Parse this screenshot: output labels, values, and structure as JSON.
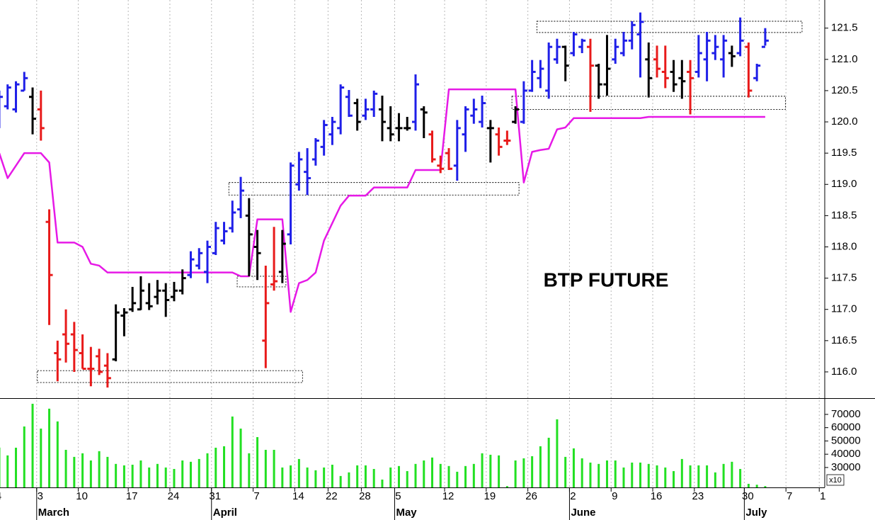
{
  "chart_data": {
    "type": "ohlc",
    "title": "BTP FUTURE",
    "categories": [
      "4",
      null,
      null,
      null,
      null,
      "3",
      null,
      null,
      null,
      null,
      "10",
      null,
      null,
      null,
      null,
      null,
      "17",
      null,
      null,
      null,
      null,
      "24",
      null,
      null,
      null,
      null,
      "31",
      null,
      null,
      null,
      null,
      "7",
      null,
      null,
      null,
      null,
      "14",
      null,
      null,
      null,
      "22",
      null,
      null,
      null,
      "28",
      null,
      null,
      null,
      "5",
      null,
      null,
      null,
      null,
      null,
      "12",
      null,
      null,
      null,
      null,
      "19",
      null,
      null,
      null,
      null,
      "26",
      null,
      null,
      null,
      null,
      "2",
      null,
      null,
      null,
      null,
      "9",
      null,
      null,
      null,
      null,
      "16",
      null,
      null,
      null,
      null,
      "23",
      null,
      null,
      null,
      null,
      null,
      "30",
      null,
      null,
      null,
      null,
      "7",
      null,
      null,
      null,
      "1"
    ],
    "x_months": [
      null,
      null,
      null,
      null,
      null,
      "March",
      null,
      null,
      null,
      null,
      null,
      null,
      null,
      null,
      null,
      null,
      null,
      null,
      null,
      null,
      null,
      null,
      null,
      null,
      null,
      null,
      "April",
      null,
      null,
      null,
      null,
      null,
      null,
      null,
      null,
      null,
      null,
      null,
      null,
      null,
      null,
      null,
      null,
      null,
      null,
      null,
      null,
      null,
      "May",
      null,
      null,
      null,
      null,
      null,
      null,
      null,
      null,
      null,
      null,
      null,
      null,
      null,
      null,
      null,
      null,
      null,
      null,
      null,
      null,
      "June",
      null,
      null,
      null,
      null,
      null,
      null,
      null,
      null,
      null,
      null,
      null,
      null,
      null,
      null,
      null,
      null,
      null,
      null,
      null,
      null,
      "July",
      null,
      null,
      null,
      null,
      null,
      null,
      null,
      null,
      null
    ],
    "open": [
      119.95,
      120.25,
      120.2,
      120.5,
      120.4,
      120.2,
      118.4,
      116.3,
      116.6,
      116.6,
      116.3,
      116.05,
      116.25,
      116.1,
      116.2,
      116.9,
      117.0,
      117.0,
      117.1,
      117.2,
      117.3,
      117.2,
      117.3,
      117.55,
      117.7,
      117.6,
      117.9,
      118.1,
      118.3,
      118.6,
      118.5,
      118.0,
      116.5,
      117.4,
      117.6,
      118.2,
      119.0,
      119.2,
      119.4,
      119.6,
      119.8,
      119.9,
      120.4,
      120.3,
      120.1,
      120.2,
      120.2,
      119.9,
      119.9,
      119.9,
      120.0,
      120.2,
      119.8,
      119.3,
      119.5,
      119.3,
      119.8,
      120.1,
      120.0,
      119.9,
      119.8,
      119.7,
      120.0,
      120.0,
      120.5,
      120.7,
      120.5,
      121.0,
      121.2,
      121.1,
      121.2,
      121.2,
      120.9,
      120.6,
      121.0,
      121.1,
      121.3,
      121.4,
      121.0,
      121.0,
      120.8,
      120.8,
      120.7,
      120.8,
      120.8,
      121.0,
      121.1,
      121.0,
      121.1,
      121.1,
      121.2,
      120.7,
      121.2,
      null,
      null,
      null,
      null,
      null,
      null,
      null
    ],
    "high": [
      120.5,
      120.6,
      120.65,
      120.8,
      120.55,
      120.5,
      118.6,
      116.5,
      117.0,
      116.8,
      116.6,
      116.4,
      116.37,
      116.3,
      117.08,
      117.02,
      117.36,
      117.53,
      117.42,
      117.47,
      117.42,
      117.44,
      117.64,
      117.93,
      117.98,
      118.1,
      118.4,
      118.4,
      118.74,
      119.12,
      118.78,
      118.27,
      117.7,
      118.32,
      118.27,
      119.35,
      119.52,
      119.58,
      119.74,
      120.03,
      120.08,
      120.6,
      120.51,
      120.37,
      120.37,
      120.5,
      120.42,
      120.25,
      120.14,
      120.08,
      120.76,
      120.25,
      119.86,
      119.46,
      119.58,
      120.03,
      120.25,
      120.37,
      120.42,
      120.03,
      119.91,
      119.86,
      120.25,
      120.65,
      120.99,
      120.99,
      121.27,
      121.33,
      121.22,
      121.44,
      121.33,
      121.33,
      120.93,
      121.39,
      121.33,
      121.44,
      121.61,
      121.75,
      121.27,
      121.22,
      121.22,
      120.99,
      120.99,
      120.99,
      121.39,
      121.44,
      121.39,
      121.39,
      121.22,
      121.67,
      121.27,
      120.93,
      121.5,
      null,
      null,
      null,
      null,
      null,
      null,
      null
    ],
    "low": [
      119.9,
      120.2,
      120.15,
      120.5,
      119.8,
      119.7,
      116.75,
      115.85,
      116.15,
      116.0,
      116.05,
      115.77,
      115.95,
      115.75,
      116.17,
      116.57,
      116.96,
      116.99,
      116.99,
      117.08,
      116.88,
      117.13,
      117.24,
      117.5,
      117.64,
      117.42,
      117.87,
      118.04,
      118.23,
      118.46,
      117.53,
      117.47,
      116.06,
      117.3,
      117.42,
      118.04,
      118.9,
      118.83,
      119.3,
      119.46,
      119.63,
      119.8,
      120.08,
      119.86,
      120.03,
      120.08,
      119.69,
      119.69,
      119.69,
      119.86,
      119.86,
      119.74,
      119.35,
      119.18,
      119.23,
      119.06,
      119.52,
      119.97,
      119.91,
      119.35,
      119.46,
      119.63,
      119.97,
      119.97,
      120.48,
      120.54,
      120.37,
      120.93,
      120.65,
      121.05,
      121.1,
      120.16,
      120.37,
      120.42,
      120.93,
      121.05,
      121.16,
      120.71,
      120.39,
      120.71,
      120.54,
      120.48,
      120.37,
      120.12,
      120.71,
      120.65,
      120.99,
      120.71,
      120.88,
      121.05,
      120.39,
      120.65,
      121.22,
      null,
      null,
      null,
      null,
      null,
      null,
      null
    ],
    "close": [
      120.4,
      120.55,
      120.6,
      120.7,
      120.05,
      119.9,
      117.55,
      116.2,
      116.45,
      116.35,
      116.05,
      116.05,
      116.0,
      115.9,
      116.95,
      116.95,
      117.1,
      117.3,
      117.05,
      117.3,
      117.15,
      117.3,
      117.5,
      117.8,
      117.9,
      118.0,
      118.3,
      118.25,
      118.55,
      118.9,
      118.2,
      117.9,
      117.1,
      117.45,
      118.05,
      119.3,
      119.4,
      119.1,
      119.7,
      119.95,
      120.0,
      120.55,
      120.1,
      120.0,
      120.2,
      120.45,
      120.0,
      119.8,
      119.9,
      119.9,
      120.6,
      120.15,
      119.4,
      119.25,
      119.25,
      119.9,
      120.2,
      120.2,
      120.3,
      119.9,
      119.6,
      119.7,
      120.2,
      120.5,
      120.8,
      120.85,
      121.2,
      121.2,
      120.9,
      121.4,
      121.3,
      120.9,
      120.6,
      120.85,
      121.2,
      121.3,
      121.55,
      121.6,
      120.7,
      120.85,
      120.7,
      120.6,
      120.65,
      120.7,
      121.1,
      121.3,
      121.2,
      121.3,
      121.05,
      121.3,
      120.5,
      120.9,
      121.3,
      null,
      null,
      null,
      null,
      null,
      null,
      null
    ],
    "trend": [
      "up",
      "up",
      "up",
      "up",
      "flat",
      "down",
      "down",
      "down",
      "down",
      "down",
      "down",
      "down",
      "down",
      "down",
      "flat",
      "flat",
      "flat",
      "flat",
      "flat",
      "flat",
      "flat",
      "flat",
      "flat",
      "up",
      "up",
      "up",
      "up",
      "up",
      "up",
      "up",
      "flat",
      "flat",
      "down",
      "down",
      "flat",
      "up",
      "up",
      "up",
      "up",
      "up",
      "up",
      "up",
      "up",
      "flat",
      "up",
      "up",
      "flat",
      "flat",
      "flat",
      "flat",
      "up",
      "flat",
      "down",
      "down",
      "down",
      "up",
      "up",
      "up",
      "up",
      "flat",
      "down",
      "down",
      "flat",
      "up",
      "up",
      "up",
      "up",
      "up",
      "flat",
      "up",
      "up",
      "down",
      "flat",
      "flat",
      "up",
      "up",
      "up",
      "up",
      "flat",
      "down",
      "down",
      "flat",
      "flat",
      "down",
      "up",
      "up",
      "up",
      "up",
      "flat",
      "up",
      "down",
      "up",
      "up",
      null,
      null,
      null,
      null,
      null,
      null,
      null
    ],
    "colors": {
      "up": "#1f1fe8",
      "down": "#e81a1a",
      "flat": "#000000",
      "line": "#e619e6",
      "volume": "#22e022"
    },
    "kijun": [
      119.5,
      119.1,
      119.3,
      119.5,
      119.5,
      119.5,
      119.35,
      118.07,
      118.07,
      118.07,
      118.0,
      117.73,
      117.7,
      117.59,
      117.59,
      117.59,
      117.59,
      117.59,
      117.59,
      117.59,
      117.59,
      117.59,
      117.59,
      117.59,
      117.59,
      117.59,
      117.59,
      117.59,
      117.59,
      117.53,
      117.53,
      118.44,
      118.44,
      118.44,
      118.44,
      116.96,
      117.42,
      117.47,
      117.59,
      118.1,
      118.38,
      118.66,
      118.82,
      118.82,
      118.82,
      118.95,
      118.95,
      118.95,
      118.95,
      118.95,
      119.23,
      119.23,
      119.23,
      119.23,
      120.52,
      120.52,
      120.52,
      120.52,
      120.52,
      120.52,
      120.52,
      120.52,
      120.52,
      119.03,
      119.52,
      119.55,
      119.57,
      119.88,
      119.91,
      120.06,
      120.06,
      120.06,
      120.06,
      120.06,
      120.06,
      120.06,
      120.06,
      120.06,
      120.08,
      120.08,
      120.08,
      120.08,
      120.08,
      120.08,
      120.08,
      120.08,
      120.08,
      120.08,
      120.08,
      120.08,
      120.08,
      120.08,
      120.08,
      null,
      null,
      null,
      null,
      null,
      null,
      null
    ],
    "volume": [
      45000,
      39100,
      44900,
      60900,
      78000,
      59300,
      74300,
      64700,
      43300,
      38000,
      40700,
      35300,
      42300,
      38000,
      32700,
      31600,
      32100,
      35300,
      30000,
      32700,
      30000,
      28900,
      35300,
      34300,
      36400,
      40700,
      44900,
      46000,
      68400,
      59300,
      40700,
      52900,
      43300,
      43300,
      30000,
      31600,
      36400,
      30000,
      27900,
      30000,
      32100,
      23600,
      26300,
      31600,
      31600,
      28900,
      20900,
      30000,
      31100,
      27300,
      32700,
      35300,
      37500,
      32700,
      31100,
      26800,
      31100,
      32700,
      40700,
      39600,
      39100,
      16000,
      35300,
      36900,
      38500,
      46000,
      52400,
      66300,
      38000,
      44400,
      36900,
      33700,
      32700,
      35300,
      35300,
      30000,
      33700,
      33700,
      32700,
      31600,
      30000,
      27300,
      36400,
      31600,
      31600,
      31600,
      26300,
      32700,
      34300,
      28900,
      17700,
      17000,
      16000,
      null,
      null,
      null,
      null,
      null,
      null,
      null
    ],
    "zones": [
      {
        "start": 5,
        "end": 36,
        "low": 115.83,
        "high": 116.02
      },
      {
        "start": 29,
        "end": 34,
        "low": 117.36,
        "high": 117.53
      },
      {
        "start": 28,
        "end": 62,
        "low": 118.83,
        "high": 119.03
      },
      {
        "start": 62,
        "end": 94,
        "low": 120.2,
        "high": 120.41
      },
      {
        "start": 65,
        "end": 96,
        "low": 121.43,
        "high": 121.61
      }
    ],
    "ylim": [
      115.58,
      121.95
    ],
    "yticks": [
      {
        "value": 116,
        "label": "116.0"
      },
      116.5,
      {
        "value": 117,
        "label": "117.0"
      },
      117.5,
      {
        "value": 118,
        "label": "118.0"
      },
      118.5,
      {
        "value": 119,
        "label": "119.0"
      },
      119.5,
      {
        "value": 120,
        "label": "120.0"
      },
      120.5,
      {
        "value": 121,
        "label": "121.0"
      },
      121.5
    ],
    "volume_ylim": [
      15000,
      81700
    ],
    "volume_yticks": [
      30000,
      40000,
      50000,
      60000,
      70000
    ],
    "volume_multiplier": "x10",
    "grid": true
  }
}
